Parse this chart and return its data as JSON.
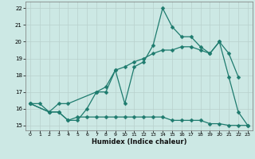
{
  "xlabel": "Humidex (Indice chaleur)",
  "xlim": [
    -0.5,
    23.5
  ],
  "ylim": [
    14.7,
    22.4
  ],
  "xticks": [
    0,
    1,
    2,
    3,
    4,
    5,
    6,
    7,
    8,
    9,
    10,
    11,
    12,
    13,
    14,
    15,
    16,
    17,
    18,
    19,
    20,
    21,
    22,
    23
  ],
  "yticks": [
    15,
    16,
    17,
    18,
    19,
    20,
    21,
    22
  ],
  "bg_color": "#cce8e4",
  "grid_color": "#b8d0cc",
  "line_color": "#1e7b6e",
  "line1_x": [
    0,
    1,
    2,
    3,
    4,
    5,
    6,
    7,
    8,
    9,
    10,
    11,
    12,
    13,
    14,
    15,
    16,
    17,
    18,
    19,
    20,
    21,
    22,
    23
  ],
  "line1_y": [
    16.3,
    16.3,
    15.8,
    15.8,
    15.3,
    15.5,
    15.5,
    15.5,
    15.5,
    15.5,
    15.5,
    15.5,
    15.5,
    15.5,
    15.5,
    15.3,
    15.3,
    15.3,
    15.3,
    15.1,
    15.1,
    15.0,
    15.0,
    15.0
  ],
  "line2_x": [
    0,
    2,
    3,
    4,
    5,
    6,
    7,
    8,
    9,
    10,
    11,
    12,
    13,
    14,
    15,
    16,
    17,
    18,
    19,
    20,
    21,
    22,
    23
  ],
  "line2_y": [
    16.3,
    15.8,
    15.8,
    15.3,
    15.3,
    16.0,
    17.0,
    17.0,
    18.3,
    16.3,
    18.5,
    18.8,
    19.8,
    22.0,
    20.9,
    20.3,
    20.3,
    19.7,
    19.3,
    20.0,
    17.9,
    15.8,
    15.0
  ],
  "line3_x": [
    0,
    2,
    3,
    4,
    7,
    8,
    9,
    10,
    11,
    12,
    13,
    14,
    15,
    16,
    17,
    18,
    19,
    20,
    21,
    22
  ],
  "line3_y": [
    16.3,
    15.8,
    16.3,
    16.3,
    17.0,
    17.3,
    18.3,
    18.5,
    18.8,
    19.0,
    19.3,
    19.5,
    19.5,
    19.7,
    19.7,
    19.5,
    19.3,
    20.0,
    19.3,
    17.9
  ]
}
